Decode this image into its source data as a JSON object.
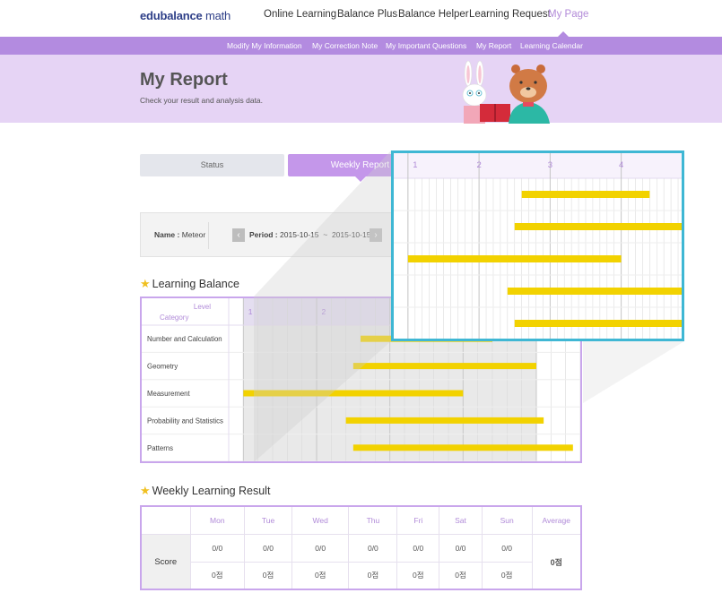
{
  "header": {
    "logo_main": "edubalance",
    "logo_suffix": " math",
    "menu": [
      {
        "label": "Online Learning",
        "active": false
      },
      {
        "label": "Balance Plus",
        "active": false
      },
      {
        "label": "Balance Helper",
        "active": false
      },
      {
        "label": "Learning Request",
        "active": false
      },
      {
        "label": "My Page",
        "active": true
      }
    ],
    "submenu": [
      "Modify My Information",
      "My Correction Note",
      "My Important Questions",
      "My Report",
      "Learning Calendar"
    ]
  },
  "hero": {
    "title": "My Report",
    "subtitle": "Check your result and analysis data."
  },
  "tabs": [
    {
      "label": "Status",
      "active": false
    },
    {
      "label": "Weekly Report",
      "active": true
    }
  ],
  "info": {
    "name_label": "Name :",
    "name_value": "Meteor",
    "period_label": "Period :",
    "period_start": "2015-10-15",
    "period_sep": "~",
    "period_end": "2015-10-15",
    "prev_icon": "chevron-left-icon",
    "next_icon": "chevron-right-icon"
  },
  "learning_balance": {
    "title": "Learning Balance",
    "level_header": "Level",
    "category_header": "Category",
    "level_labels": [
      "1",
      "2",
      "3"
    ],
    "bar_color": "#f2d200"
  },
  "chart_data": {
    "type": "bar",
    "orientation": "horizontal",
    "x_ticks": [
      "1",
      "2",
      "3",
      "4"
    ],
    "categories": [
      "Number and Calculation",
      "Geometry",
      "Measurement",
      "Probability and Statistics",
      "Patterns"
    ],
    "ranges": [
      [
        2.6,
        4.4
      ],
      [
        2.5,
        5.0
      ],
      [
        1.0,
        4.0
      ],
      [
        2.4,
        5.1
      ],
      [
        2.5,
        5.5
      ]
    ],
    "xlim": [
      0.8,
      5.6
    ],
    "grid": true
  },
  "magnified_view": {
    "level_labels": [
      "1",
      "2",
      "3",
      "4"
    ]
  },
  "weekly_result": {
    "title": "Weekly Learning Result",
    "days": [
      "Mon",
      "Tue",
      "Wed",
      "Thu",
      "Fri",
      "Sat",
      "Sun"
    ],
    "average_label": "Average",
    "row_label": "Score",
    "fractions": [
      "0/0",
      "0/0",
      "0/0",
      "0/0",
      "0/0",
      "0/0",
      "0/0"
    ],
    "points": [
      "0점",
      "0점",
      "0점",
      "0점",
      "0점",
      "0점",
      "0점"
    ],
    "average_value": "0점"
  },
  "colors": {
    "accent_purple": "#b38be0",
    "hero_bg": "#e6d4f5",
    "bar_yellow": "#f2d200",
    "magnifier_border": "#3fb7d4"
  }
}
